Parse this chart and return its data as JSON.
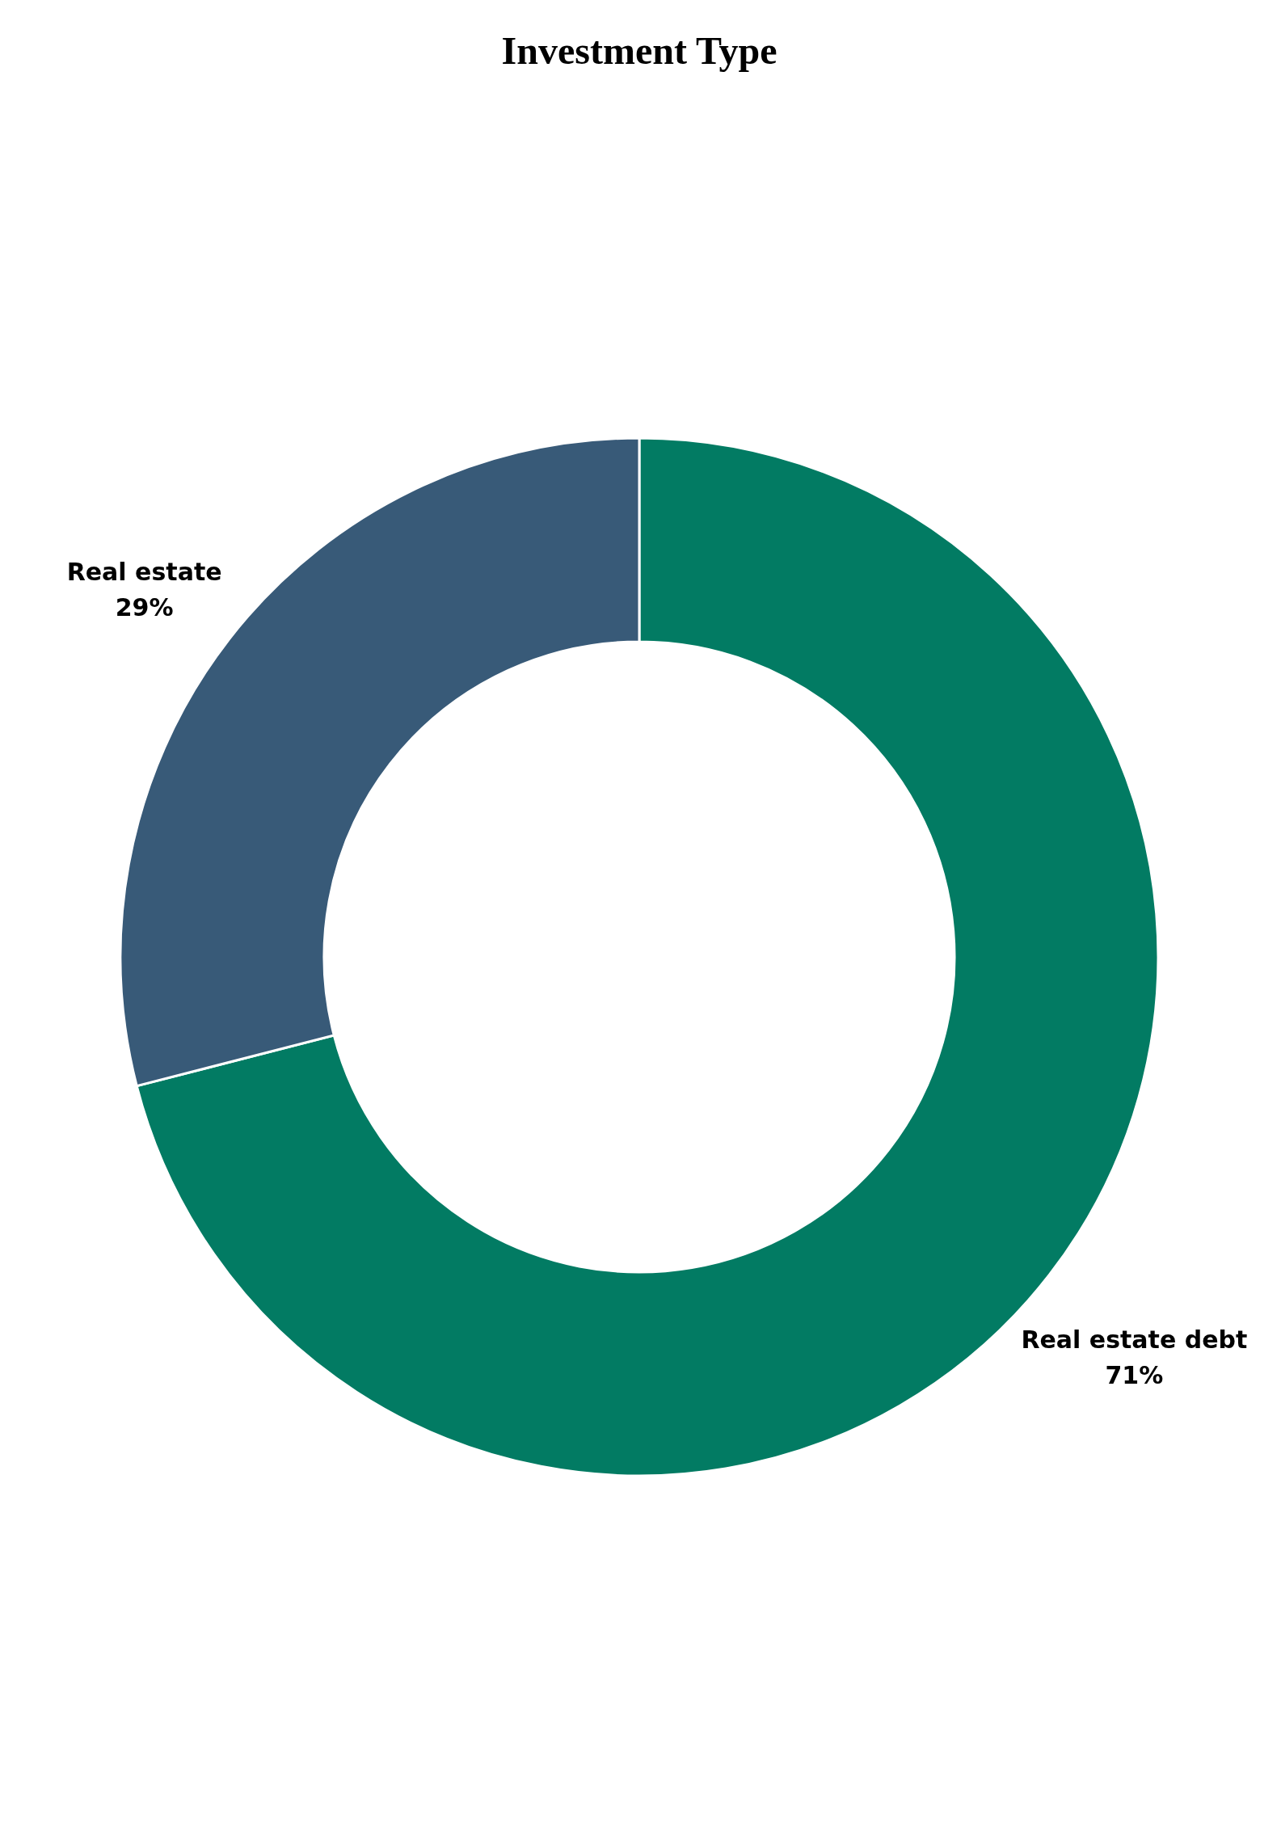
{
  "chart_data": {
    "type": "donut",
    "title": "Investment Type",
    "categories": [
      "Real estate debt",
      "Real estate"
    ],
    "values": [
      71,
      29
    ],
    "colors": [
      "#027b63",
      "#385a78"
    ],
    "value_labels": [
      "71%",
      "29%"
    ]
  }
}
